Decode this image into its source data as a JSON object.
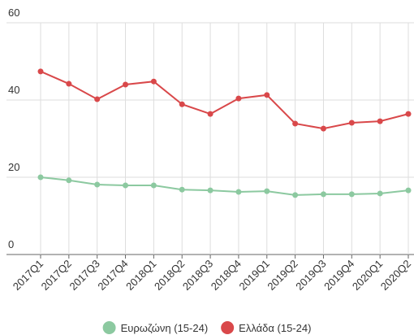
{
  "chart_data": {
    "type": "line",
    "categories": [
      "2017Q1",
      "2017Q2",
      "2017Q3",
      "2017Q4",
      "2018Q1",
      "2018Q2",
      "2018Q3",
      "2018Q4",
      "2019Q1",
      "2019Q2",
      "2019Q3",
      "2019Q4",
      "2020Q1",
      "2020Q2"
    ],
    "series": [
      {
        "name": "Ευρωζώνη (15-24)",
        "color": "#8cc9a0",
        "values": [
          20.0,
          19.2,
          18.1,
          17.9,
          17.9,
          16.8,
          16.6,
          16.2,
          16.4,
          15.4,
          15.6,
          15.6,
          15.8,
          16.6
        ]
      },
      {
        "name": "Ελλάδα (15-24)",
        "color": "#d9484a",
        "values": [
          47.4,
          44.2,
          40.2,
          44.0,
          44.8,
          38.9,
          36.4,
          40.4,
          41.3,
          33.9,
          32.6,
          34.1,
          34.5,
          36.4
        ]
      }
    ],
    "ylim": [
      0,
      60
    ],
    "yticks": [
      0,
      20,
      40,
      60
    ],
    "grid": true
  }
}
